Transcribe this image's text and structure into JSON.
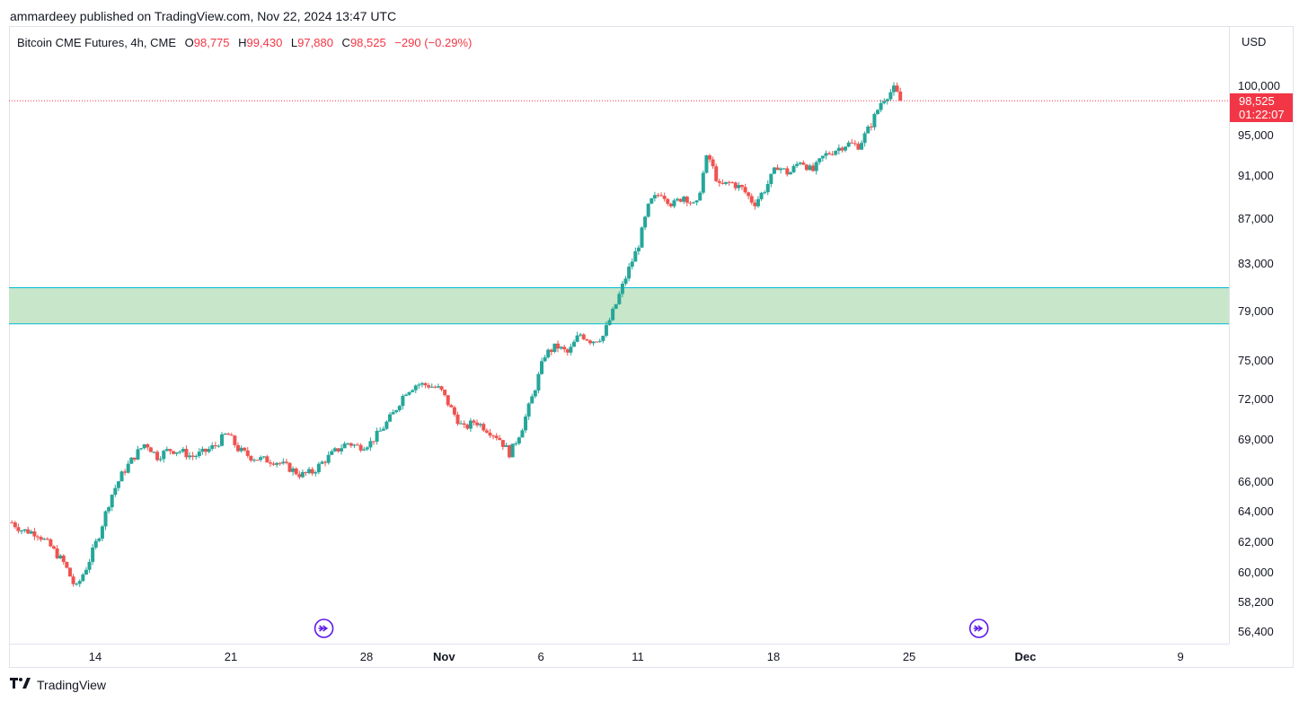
{
  "publisher_line": "ammardeey published on TradingView.com, Nov 22, 2024 13:47 UTC",
  "legend": {
    "title": "Bitcoin CME Futures, 4h, CME",
    "o_label": "O",
    "o_value": "98,775",
    "h_label": "H",
    "h_value": "99,430",
    "l_label": "L",
    "l_value": "97,880",
    "c_label": "C",
    "c_value": "98,525",
    "change": "−290 (−0.29%)"
  },
  "currency": "USD",
  "last_price": {
    "value_label": "98,525",
    "countdown": "01:22:07",
    "value": 98525
  },
  "brand": "TradingView",
  "colors": {
    "up": "#26a69a",
    "down": "#ef5350",
    "zone_fill": "#c8e6c9",
    "zone_line": "#00bcd4",
    "price_line": "#f23645",
    "event_icon": "#5d17eb"
  },
  "chart_data": {
    "type": "candlestick",
    "ticks_y": [
      {
        "label": "100,000",
        "value": 100000
      },
      {
        "label": "95,000",
        "value": 95000
      },
      {
        "label": "91,000",
        "value": 91000
      },
      {
        "label": "87,000",
        "value": 87000
      },
      {
        "label": "83,000",
        "value": 83000
      },
      {
        "label": "79,000",
        "value": 79000
      },
      {
        "label": "75,000",
        "value": 75000
      },
      {
        "label": "72,000",
        "value": 72000
      },
      {
        "label": "69,000",
        "value": 69000
      },
      {
        "label": "66,000",
        "value": 66000
      },
      {
        "label": "64,000",
        "value": 64000
      },
      {
        "label": "62,000",
        "value": 62000
      },
      {
        "label": "60,000",
        "value": 60000
      },
      {
        "label": "58,200",
        "value": 58200
      },
      {
        "label": "56,400",
        "value": 56400
      }
    ],
    "ticks_x": [
      {
        "label": "14",
        "day": 14
      },
      {
        "label": "21",
        "day": 21
      },
      {
        "label": "28",
        "day": 28
      },
      {
        "label": "Nov",
        "day": 32
      },
      {
        "label": "6",
        "day": 37
      },
      {
        "label": "11",
        "day": 42
      },
      {
        "label": "18",
        "day": 49
      },
      {
        "label": "25",
        "day": 56
      },
      {
        "label": "Dec",
        "day": 62
      },
      {
        "label": "9",
        "day": 70
      }
    ],
    "x_range_days": [
      9.55,
      72.5
    ],
    "zone": {
      "top": 81000,
      "bottom": 78000
    },
    "events_day": [
      25.8,
      59.6
    ],
    "path": [
      [
        9.7,
        63300
      ],
      [
        10.2,
        62800
      ],
      [
        11,
        62600
      ],
      [
        11.7,
        61700
      ],
      [
        12.4,
        60600
      ],
      [
        13,
        59000
      ],
      [
        13.6,
        60500
      ],
      [
        14.2,
        62500
      ],
      [
        14.8,
        65000
      ],
      [
        15.4,
        66600
      ],
      [
        16,
        67800
      ],
      [
        16.6,
        68800
      ],
      [
        17.2,
        67800
      ],
      [
        17.8,
        68300
      ],
      [
        18.4,
        68200
      ],
      [
        19,
        67800
      ],
      [
        19.6,
        68100
      ],
      [
        20.2,
        68600
      ],
      [
        20.8,
        69500
      ],
      [
        21.4,
        68300
      ],
      [
        22,
        67800
      ],
      [
        22.6,
        67600
      ],
      [
        23.3,
        67500
      ],
      [
        24,
        67000
      ],
      [
        24.6,
        66500
      ],
      [
        25.2,
        66700
      ],
      [
        25.8,
        67500
      ],
      [
        26.4,
        68200
      ],
      [
        27,
        68800
      ],
      [
        27.6,
        68500
      ],
      [
        28.2,
        68800
      ],
      [
        28.8,
        69800
      ],
      [
        29.4,
        71000
      ],
      [
        30,
        72600
      ],
      [
        30.6,
        73200
      ],
      [
        31.2,
        73100
      ],
      [
        31.8,
        72800
      ],
      [
        32.4,
        71200
      ],
      [
        33,
        69800
      ],
      [
        33.6,
        70400
      ],
      [
        34.2,
        69800
      ],
      [
        34.8,
        69200
      ],
      [
        35.4,
        68000
      ],
      [
        36,
        69800
      ],
      [
        36.6,
        72400
      ],
      [
        37.2,
        75500
      ],
      [
        37.8,
        76200
      ],
      [
        38.4,
        75600
      ],
      [
        39,
        77200
      ],
      [
        39.6,
        76600
      ],
      [
        40.2,
        77000
      ],
      [
        40.8,
        79300
      ],
      [
        41.4,
        82000
      ],
      [
        42,
        84500
      ],
      [
        42.6,
        88500
      ],
      [
        43.2,
        89500
      ],
      [
        43.8,
        88300
      ],
      [
        44.4,
        89200
      ],
      [
        45,
        88000
      ],
      [
        45.6,
        93200
      ],
      [
        46.2,
        90000
      ],
      [
        46.8,
        90400
      ],
      [
        47.4,
        89800
      ],
      [
        48,
        88400
      ],
      [
        48.6,
        89900
      ],
      [
        49.2,
        92000
      ],
      [
        49.8,
        91200
      ],
      [
        50.4,
        92600
      ],
      [
        51,
        91400
      ],
      [
        51.6,
        93000
      ],
      [
        52.2,
        93600
      ],
      [
        52.8,
        94200
      ],
      [
        53.4,
        94000
      ],
      [
        54,
        96000
      ],
      [
        54.6,
        98600
      ],
      [
        55.2,
        99700
      ],
      [
        55.6,
        98525
      ]
    ]
  }
}
